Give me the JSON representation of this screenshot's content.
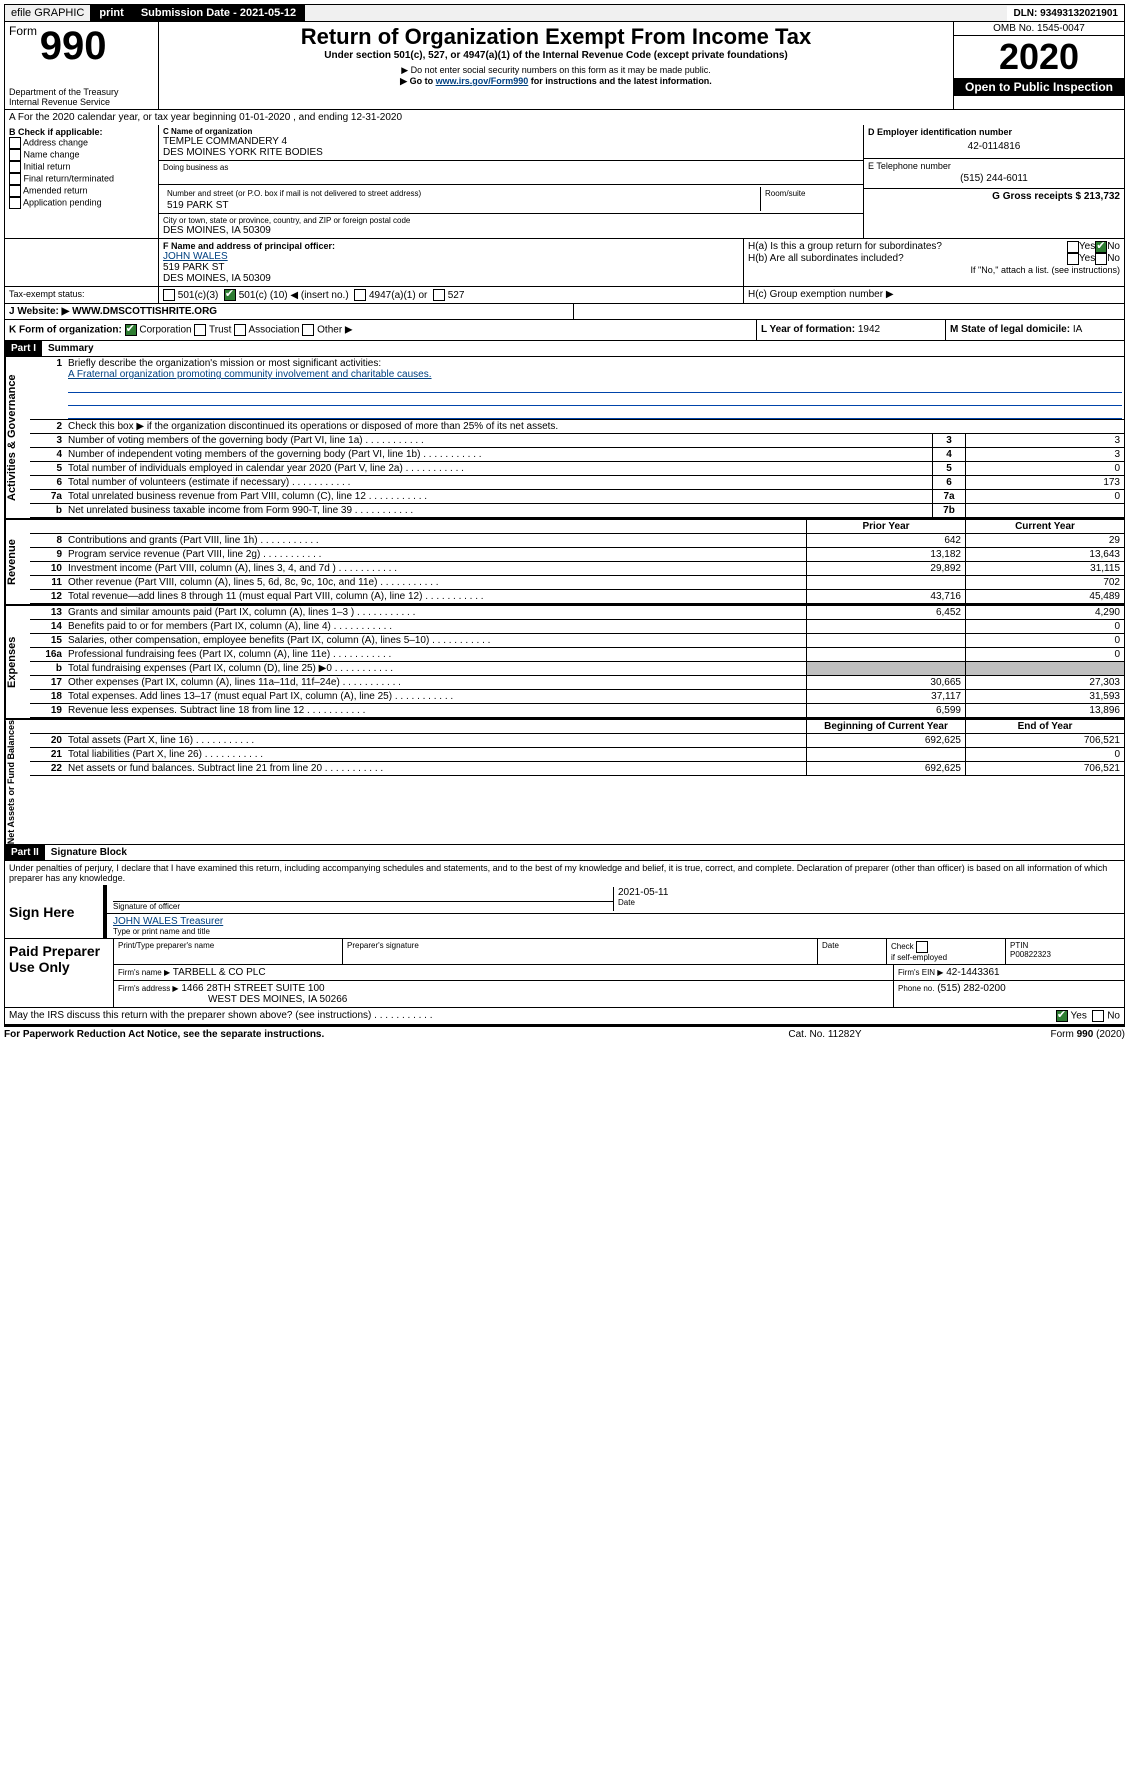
{
  "topbar": {
    "efile": "efile GRAPHIC",
    "print": "print",
    "submission": "Submission Date - 2021-05-12",
    "dln": "DLN: 93493132021901"
  },
  "header": {
    "form_word": "Form",
    "form_no": "990",
    "dept1": "Department of the Treasury",
    "dept2": "Internal Revenue Service",
    "title": "Return of Organization Exempt From Income Tax",
    "sub1": "Under section 501(c), 527, or 4947(a)(1) of the Internal Revenue Code (except private foundations)",
    "sub2": "▶ Do not enter social security numbers on this form as it may be made public.",
    "sub3a": "▶ Go to ",
    "sub3b": "www.irs.gov/Form990",
    "sub3c": " for instructions and the latest information.",
    "omb": "OMB No. 1545-0047",
    "year": "2020",
    "open": "Open to Public Inspection"
  },
  "lineA": {
    "text": "A For the 2020 calendar year, or tax year beginning 01-01-2020    , and ending 12-31-2020"
  },
  "colB": {
    "title": "B Check if applicable:",
    "opts": [
      "Address change",
      "Name change",
      "Initial return",
      "Final return/terminated",
      "Amended return",
      "Application pending"
    ]
  },
  "colC": {
    "name_label": "C Name of organization",
    "name1": "TEMPLE COMMANDERY 4",
    "name2": "DES MOINES YORK RITE BODIES",
    "dba_label": "Doing business as",
    "addr_label": "Number and street (or P.O. box if mail is not delivered to street address)",
    "room_label": "Room/suite",
    "addr": "519 PARK ST",
    "city_label": "City or town, state or province, country, and ZIP or foreign postal code",
    "city": "DES MOINES, IA  50309"
  },
  "colDE": {
    "d_label": "D Employer identification number",
    "d_val": "42-0114816",
    "e_label": "E Telephone number",
    "e_val": "(515) 244-6011",
    "g_label": "G Gross receipts $ 213,732"
  },
  "rowF": {
    "f_label": "F  Name and address of principal officer:",
    "f_name": "JOHN WALES",
    "f_addr1": "519 PARK ST",
    "f_addr2": "DES MOINES, IA  50309",
    "ha": "H(a)  Is this a group return for subordinates?",
    "hb": "H(b)  Are all subordinates included?",
    "hb2": "If \"No,\" attach a list. (see instructions)",
    "hc": "H(c)  Group exemption number ▶",
    "yes": "Yes",
    "no": "No"
  },
  "rowI": {
    "label": "Tax-exempt status:",
    "o1": "501(c)(3)",
    "o2a": "501(c) (",
    "o2n": "10",
    "o2b": ") ◀ (insert no.)",
    "o3": "4947(a)(1) or",
    "o4": "527"
  },
  "rowJ": {
    "label": "J  Website: ▶",
    "val": "WWW.DMSCOTTISHRITE.ORG"
  },
  "rowK": {
    "label": "K Form of organization:",
    "corp": "Corporation",
    "trust": "Trust",
    "assoc": "Association",
    "other": "Other ▶",
    "l_label": "L Year of formation: ",
    "l_val": "1942",
    "m_label": "M State of legal domicile: ",
    "m_val": "IA"
  },
  "part1": {
    "hdr": "Part I",
    "title": "Summary",
    "q1a": "Briefly describe the organization's mission or most significant activities:",
    "q1b": "A Fraternal organization promoting community involvement and charitable causes.",
    "q2": "Check this box ▶       if the organization discontinued its operations or disposed of more than 25% of its net assets.",
    "rows_ag": [
      {
        "n": "3",
        "d": "Number of voting members of the governing body (Part VI, line 1a)",
        "b": "3",
        "v": "3"
      },
      {
        "n": "4",
        "d": "Number of independent voting members of the governing body (Part VI, line 1b)",
        "b": "4",
        "v": "3"
      },
      {
        "n": "5",
        "d": "Total number of individuals employed in calendar year 2020 (Part V, line 2a)",
        "b": "5",
        "v": "0"
      },
      {
        "n": "6",
        "d": "Total number of volunteers (estimate if necessary)",
        "b": "6",
        "v": "173"
      },
      {
        "n": "7a",
        "d": "Total unrelated business revenue from Part VIII, column (C), line 12",
        "b": "7a",
        "v": "0"
      },
      {
        "n": "b",
        "d": "Net unrelated business taxable income from Form 990-T, line 39",
        "b": "7b",
        "v": ""
      }
    ],
    "col_py": "Prior Year",
    "col_cy": "Current Year",
    "rows_rev": [
      {
        "n": "8",
        "d": "Contributions and grants (Part VIII, line 1h)",
        "py": "642",
        "cy": "29"
      },
      {
        "n": "9",
        "d": "Program service revenue (Part VIII, line 2g)",
        "py": "13,182",
        "cy": "13,643"
      },
      {
        "n": "10",
        "d": "Investment income (Part VIII, column (A), lines 3, 4, and 7d )",
        "py": "29,892",
        "cy": "31,115"
      },
      {
        "n": "11",
        "d": "Other revenue (Part VIII, column (A), lines 5, 6d, 8c, 9c, 10c, and 11e)",
        "py": "",
        "cy": "702"
      },
      {
        "n": "12",
        "d": "Total revenue—add lines 8 through 11 (must equal Part VIII, column (A), line 12)",
        "py": "43,716",
        "cy": "45,489"
      }
    ],
    "rows_exp": [
      {
        "n": "13",
        "d": "Grants and similar amounts paid (Part IX, column (A), lines 1–3 )",
        "py": "6,452",
        "cy": "4,290"
      },
      {
        "n": "14",
        "d": "Benefits paid to or for members (Part IX, column (A), line 4)",
        "py": "",
        "cy": "0"
      },
      {
        "n": "15",
        "d": "Salaries, other compensation, employee benefits (Part IX, column (A), lines 5–10)",
        "py": "",
        "cy": "0"
      },
      {
        "n": "16a",
        "d": "Professional fundraising fees (Part IX, column (A), line 11e)",
        "py": "",
        "cy": "0"
      },
      {
        "n": "b",
        "d": "Total fundraising expenses (Part IX, column (D), line 25) ▶0",
        "py": "grey",
        "cy": "grey"
      },
      {
        "n": "17",
        "d": "Other expenses (Part IX, column (A), lines 11a–11d, 11f–24e)",
        "py": "30,665",
        "cy": "27,303"
      },
      {
        "n": "18",
        "d": "Total expenses. Add lines 13–17 (must equal Part IX, column (A), line 25)",
        "py": "37,117",
        "cy": "31,593"
      },
      {
        "n": "19",
        "d": "Revenue less expenses. Subtract line 18 from line 12",
        "py": "6,599",
        "cy": "13,896"
      }
    ],
    "col_by": "Beginning of Current Year",
    "col_ey": "End of Year",
    "rows_na": [
      {
        "n": "20",
        "d": "Total assets (Part X, line 16)",
        "py": "692,625",
        "cy": "706,521"
      },
      {
        "n": "21",
        "d": "Total liabilities (Part X, line 26)",
        "py": "",
        "cy": "0"
      },
      {
        "n": "22",
        "d": "Net assets or fund balances. Subtract line 21 from line 20",
        "py": "692,625",
        "cy": "706,521"
      }
    ],
    "vtab_ag": "Activities & Governance",
    "vtab_rev": "Revenue",
    "vtab_exp": "Expenses",
    "vtab_na": "Net Assets or Fund Balances"
  },
  "part2": {
    "hdr": "Part II",
    "title": "Signature Block",
    "decl": "Under penalties of perjury, I declare that I have examined this return, including accompanying schedules and statements, and to the best of my knowledge and belief, it is true, correct, and complete. Declaration of preparer (other than officer) is based on all information of which preparer has any knowledge.",
    "sign_here": "Sign Here",
    "sig_officer": "Signature of officer",
    "date": "Date",
    "date_val": "2021-05-11",
    "name_title": "JOHN WALES  Treasurer",
    "type_name": "Type or print name and title"
  },
  "prep": {
    "label": "Paid Preparer Use Only",
    "h1": "Print/Type preparer's name",
    "h2": "Preparer's signature",
    "h3": "Date",
    "h4a": "Check",
    "h4b": "if self-employed",
    "h5": "PTIN",
    "ptin": "P00822323",
    "firm_name_l": "Firm's name    ▶",
    "firm_name": "TARBELL & CO PLC",
    "firm_ein_l": "Firm's EIN ▶",
    "firm_ein": "42-1443361",
    "firm_addr_l": "Firm's address ▶",
    "firm_addr1": "1466 28TH STREET SUITE 100",
    "firm_addr2": "WEST DES MOINES, IA  50266",
    "phone_l": "Phone no.",
    "phone": "(515) 282-0200"
  },
  "discuss": {
    "q": "May the IRS discuss this return with the preparer shown above? (see instructions)",
    "yes": "Yes",
    "no": "No"
  },
  "footer": {
    "pra": "For Paperwork Reduction Act Notice, see the separate instructions.",
    "cat": "Cat. No. 11282Y",
    "form": "Form 990 (2020)"
  }
}
